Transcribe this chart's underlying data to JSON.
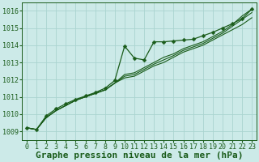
{
  "title": "Graphe pression niveau de la mer (hPa)",
  "xlabel_ticks": [
    0,
    1,
    2,
    3,
    4,
    5,
    6,
    7,
    8,
    9,
    10,
    11,
    12,
    13,
    14,
    15,
    16,
    17,
    18,
    19,
    20,
    21,
    22,
    23
  ],
  "ylim": [
    1008.5,
    1016.5
  ],
  "xlim": [
    -0.5,
    23.5
  ],
  "yticks": [
    1009,
    1010,
    1011,
    1012,
    1013,
    1014,
    1015,
    1016
  ],
  "bg_color": "#cceae8",
  "grid_color": "#aad4d0",
  "line_color": "#1a5c1a",
  "marker_color": "#1a5c1a",
  "series": [
    {
      "y": [
        1009.2,
        1009.1,
        1009.8,
        1010.2,
        1010.5,
        1010.8,
        1011.0,
        1011.2,
        1011.4,
        1011.8,
        1012.1,
        1012.2,
        1012.5,
        1012.8,
        1013.0,
        1013.3,
        1013.6,
        1013.8,
        1014.0,
        1014.3,
        1014.6,
        1014.9,
        1015.2,
        1015.6
      ],
      "marker": false,
      "linewidth": 0.8,
      "linestyle": "-"
    },
    {
      "y": [
        1009.2,
        1009.1,
        1009.8,
        1010.2,
        1010.5,
        1010.8,
        1011.0,
        1011.2,
        1011.4,
        1011.8,
        1012.2,
        1012.3,
        1012.6,
        1012.9,
        1013.15,
        1013.4,
        1013.7,
        1013.9,
        1014.1,
        1014.4,
        1014.7,
        1015.1,
        1015.5,
        1015.9
      ],
      "marker": false,
      "linewidth": 0.8,
      "linestyle": "-"
    },
    {
      "y": [
        1009.2,
        1009.1,
        1009.8,
        1010.2,
        1010.5,
        1010.8,
        1011.0,
        1011.2,
        1011.4,
        1011.8,
        1012.3,
        1012.4,
        1012.7,
        1013.0,
        1013.3,
        1013.5,
        1013.8,
        1014.0,
        1014.2,
        1014.5,
        1014.8,
        1015.2,
        1015.7,
        1016.1
      ],
      "marker": false,
      "linewidth": 0.8,
      "linestyle": "-"
    },
    {
      "y": [
        1009.2,
        1009.1,
        1009.9,
        1010.3,
        1010.6,
        1010.85,
        1011.05,
        1011.25,
        1011.5,
        1011.95,
        1013.95,
        1013.25,
        1013.15,
        1014.2,
        1014.2,
        1014.25,
        1014.3,
        1014.35,
        1014.55,
        1014.75,
        1015.0,
        1015.25,
        1015.55,
        1016.1
      ],
      "marker": true,
      "linewidth": 0.9,
      "linestyle": "-"
    }
  ],
  "title_fontsize": 8,
  "tick_fontsize": 6,
  "font_family": "monospace"
}
